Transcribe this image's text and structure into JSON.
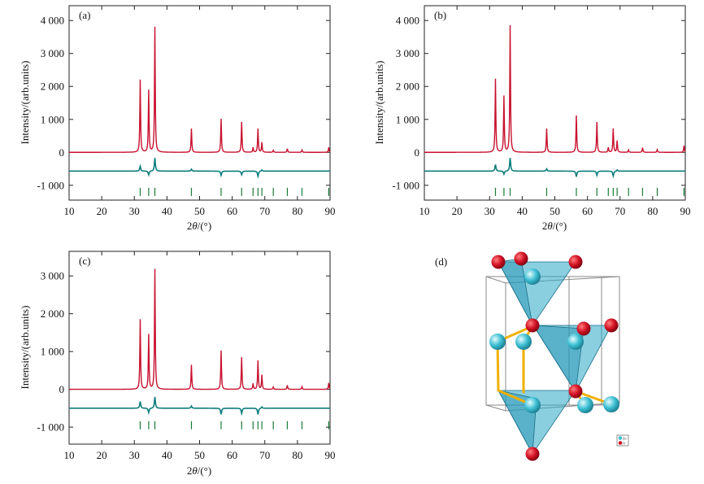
{
  "chart_data": [
    {
      "type": "line",
      "panel_label": "(a)",
      "xlabel_parts": [
        "2",
        "θ",
        "/(°)"
      ],
      "ylabel": "Intensity/(arb.units)",
      "xlim": [
        10,
        90
      ],
      "ylim": [
        -1450,
        4450
      ],
      "x_ticks": [
        10,
        20,
        30,
        40,
        50,
        60,
        70,
        80,
        90
      ],
      "y_ticks": [
        -1000,
        0,
        1000,
        2000,
        3000,
        4000
      ],
      "y_tick_labels": [
        "-1 000",
        "0",
        "1 000",
        "2 000",
        "3 000",
        "4 000"
      ],
      "baseline": 0,
      "peaks": [
        [
          31.8,
          2200
        ],
        [
          34.4,
          1880
        ],
        [
          36.3,
          3800
        ],
        [
          47.5,
          720
        ],
        [
          56.6,
          1020
        ],
        [
          62.9,
          920
        ],
        [
          66.4,
          150
        ],
        [
          67.9,
          720
        ],
        [
          69.1,
          300
        ],
        [
          72.6,
          60
        ],
        [
          76.9,
          110
        ],
        [
          81.4,
          70
        ],
        [
          89.6,
          150
        ]
      ],
      "difference_offset": -570,
      "difference_features": [
        [
          31.8,
          150
        ],
        [
          34.4,
          -120
        ],
        [
          36.3,
          400
        ],
        [
          47.5,
          60
        ],
        [
          56.6,
          -130
        ],
        [
          62.9,
          -110
        ],
        [
          67.9,
          -160
        ],
        [
          69.1,
          40
        ]
      ],
      "bragg_positions": [
        31.8,
        34.4,
        36.3,
        47.5,
        56.6,
        62.9,
        66.4,
        67.9,
        69.1,
        72.6,
        76.9,
        81.4,
        89.6
      ],
      "bragg_y": -1200
    },
    {
      "type": "line",
      "panel_label": "(b)",
      "xlabel_parts": [
        "2",
        "θ",
        "/(°)"
      ],
      "ylabel": "Intensity/(arb.units)",
      "xlim": [
        10,
        90
      ],
      "ylim": [
        -1450,
        4450
      ],
      "x_ticks": [
        10,
        20,
        30,
        40,
        50,
        60,
        70,
        80,
        90
      ],
      "y_ticks": [
        -1000,
        0,
        1000,
        2000,
        3000,
        4000
      ],
      "y_tick_labels": [
        "-1 000",
        "0",
        "1 000",
        "2 000",
        "3 000",
        "4 000"
      ],
      "baseline": 0,
      "peaks": [
        [
          31.8,
          2230
        ],
        [
          34.4,
          1700
        ],
        [
          36.3,
          3850
        ],
        [
          47.5,
          720
        ],
        [
          56.6,
          1120
        ],
        [
          62.9,
          920
        ],
        [
          66.4,
          150
        ],
        [
          67.9,
          720
        ],
        [
          69.1,
          350
        ],
        [
          72.6,
          70
        ],
        [
          76.9,
          140
        ],
        [
          81.4,
          80
        ],
        [
          89.6,
          200
        ]
      ],
      "difference_offset": -570,
      "difference_features": [
        [
          31.8,
          200
        ],
        [
          34.4,
          -100
        ],
        [
          36.3,
          400
        ],
        [
          47.5,
          70
        ],
        [
          56.6,
          -170
        ],
        [
          62.9,
          -130
        ],
        [
          67.9,
          -150
        ],
        [
          69.1,
          40
        ]
      ],
      "bragg_positions": [
        31.8,
        34.4,
        36.3,
        47.5,
        56.6,
        62.9,
        66.4,
        67.9,
        69.1,
        72.6,
        76.9,
        81.4,
        89.6
      ],
      "bragg_y": -1200
    },
    {
      "type": "line",
      "panel_label": "(c)",
      "xlabel_parts": [
        "2",
        "θ",
        "/(°)"
      ],
      "ylabel": "Intensity/(arb.units)",
      "xlim": [
        10,
        90
      ],
      "ylim": [
        -1450,
        3650
      ],
      "x_ticks": [
        10,
        20,
        30,
        40,
        50,
        60,
        70,
        80,
        90
      ],
      "y_ticks": [
        -1000,
        0,
        1000,
        2000,
        3000
      ],
      "y_tick_labels": [
        "-1 000",
        "0",
        "1 000",
        "2 000",
        "3 000"
      ],
      "baseline": 0,
      "peaks": [
        [
          31.8,
          1850
        ],
        [
          34.4,
          1450
        ],
        [
          36.3,
          3180
        ],
        [
          47.5,
          650
        ],
        [
          56.6,
          1030
        ],
        [
          62.9,
          850
        ],
        [
          66.4,
          150
        ],
        [
          67.9,
          760
        ],
        [
          69.1,
          380
        ],
        [
          72.6,
          60
        ],
        [
          76.9,
          110
        ],
        [
          81.4,
          70
        ],
        [
          89.6,
          170
        ]
      ],
      "difference_offset": -500,
      "difference_features": [
        [
          31.8,
          180
        ],
        [
          34.4,
          -120
        ],
        [
          36.3,
          300
        ],
        [
          47.5,
          60
        ],
        [
          56.6,
          -160
        ],
        [
          62.9,
          -140
        ],
        [
          67.9,
          -160
        ],
        [
          69.1,
          40
        ]
      ],
      "bragg_positions": [
        31.8,
        34.4,
        36.3,
        47.5,
        56.6,
        62.9,
        66.4,
        67.9,
        69.1,
        72.6,
        76.9,
        81.4,
        89.6
      ],
      "bragg_y": -950
    }
  ],
  "structure": {
    "panel_label": "(d)",
    "legend_labels": [
      "Zn",
      "O"
    ],
    "colors": {
      "zn": "#3cbfd2",
      "o": "#d21224",
      "tetra": "#2aa7c4",
      "bond": "#f0b000"
    }
  },
  "colors": {
    "observed": "#c8102e",
    "difference": "#0f7d7d",
    "bragg": "#1a7a3a",
    "axis": "#222222"
  }
}
